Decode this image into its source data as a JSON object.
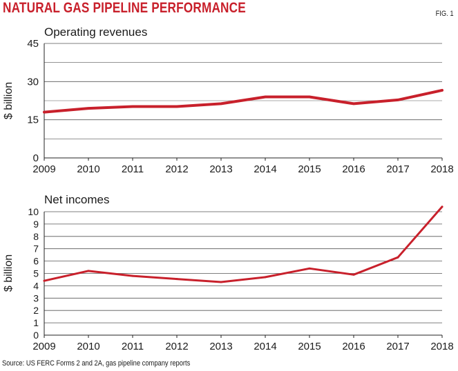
{
  "header": {
    "title": "NATURAL GAS PIPELINE PERFORMANCE",
    "fig_label": "FIG. 1"
  },
  "footer": {
    "source": "Source: US FERC Forms 2 and 2A, gas pipeline company reports"
  },
  "colors": {
    "line": "#c8202b",
    "title": "#c8202b",
    "grid": "#555555"
  },
  "chart_data": [
    {
      "type": "line",
      "title": "Operating revenues",
      "xlabel": "",
      "ylabel": "$ billion",
      "x": [
        "2009",
        "2010",
        "2011",
        "2012",
        "2013",
        "2014",
        "2015",
        "2016",
        "2017",
        "2018"
      ],
      "series": [
        {
          "name": "Operating revenues",
          "values": [
            18.0,
            19.5,
            20.2,
            20.2,
            21.3,
            24.0,
            24.0,
            21.3,
            22.8,
            26.6
          ]
        }
      ],
      "ylim": [
        0,
        45
      ],
      "yticks": [
        "0",
        "15",
        "30",
        "45"
      ],
      "grid": true
    },
    {
      "type": "line",
      "title": "Net incomes",
      "xlabel": "",
      "ylabel": "$ billion",
      "x": [
        "2009",
        "2010",
        "2011",
        "2012",
        "2013",
        "2014",
        "2015",
        "2016",
        "2017",
        "2018"
      ],
      "series": [
        {
          "name": "Net incomes",
          "values": [
            4.4,
            5.2,
            4.8,
            4.55,
            4.3,
            4.7,
            5.4,
            4.9,
            6.3,
            10.4
          ]
        }
      ],
      "ylim": [
        0,
        10
      ],
      "yticks": [
        "0",
        "1",
        "2",
        "3",
        "4",
        "5",
        "6",
        "7",
        "8",
        "9",
        "10"
      ],
      "grid": true
    }
  ]
}
